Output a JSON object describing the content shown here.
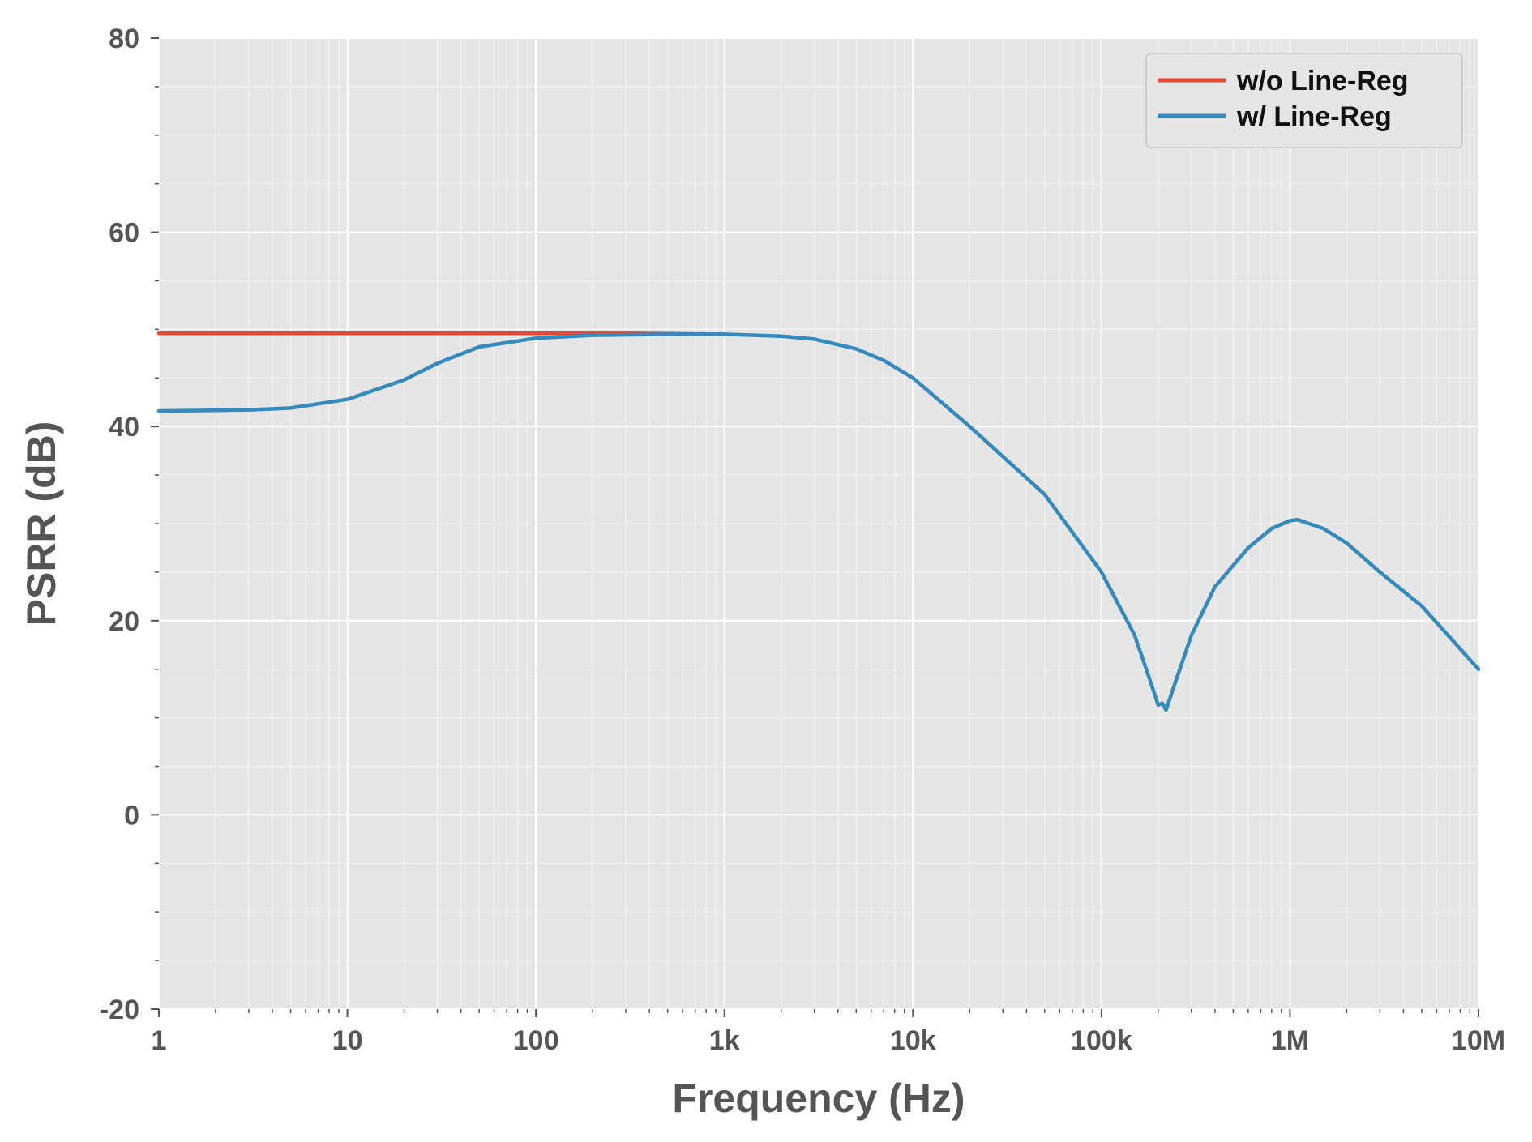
{
  "chart_data": {
    "type": "line",
    "title": "",
    "xlabel": "Frequency (Hz)",
    "ylabel": "PSRR (dB)",
    "xscale": "log",
    "xlim": [
      1,
      10000000
    ],
    "ylim": [
      -20,
      80
    ],
    "xticks": [
      {
        "value": 1,
        "label": "1"
      },
      {
        "value": 10,
        "label": "10"
      },
      {
        "value": 100,
        "label": "100"
      },
      {
        "value": 1000,
        "label": "1k"
      },
      {
        "value": 10000,
        "label": "10k"
      },
      {
        "value": 100000,
        "label": "100k"
      },
      {
        "value": 1000000,
        "label": "1M"
      },
      {
        "value": 10000000,
        "label": "10M"
      }
    ],
    "yticks": [
      {
        "value": -20,
        "label": "-20"
      },
      {
        "value": 0,
        "label": "0"
      },
      {
        "value": 20,
        "label": "20"
      },
      {
        "value": 40,
        "label": "40"
      },
      {
        "value": 60,
        "label": "60"
      },
      {
        "value": 80,
        "label": "80"
      }
    ],
    "grid": true,
    "legend_position": "top-right",
    "series": [
      {
        "name": "w/o Line-Reg",
        "color": "#E24A33",
        "x": [
          1,
          10,
          100,
          300,
          1000
        ],
        "y": [
          49.6,
          49.6,
          49.6,
          49.6,
          49.5
        ]
      },
      {
        "name": "w/ Line-Reg",
        "color": "#348ABD",
        "x": [
          1,
          3,
          5,
          10,
          20,
          30,
          50,
          100,
          200,
          500,
          1000,
          2000,
          3000,
          5000,
          7000,
          10000,
          20000,
          50000,
          100000,
          150000,
          180000,
          200000,
          210000,
          220000,
          250000,
          300000,
          400000,
          600000,
          800000,
          1000000,
          1100000,
          1500000,
          2000000,
          3000000,
          5000000,
          10000000
        ],
        "y": [
          41.6,
          41.7,
          41.9,
          42.8,
          44.8,
          46.5,
          48.2,
          49.1,
          49.4,
          49.5,
          49.5,
          49.3,
          49.0,
          48.0,
          46.8,
          45.0,
          40.0,
          33.0,
          25.0,
          18.5,
          14.0,
          11.3,
          11.5,
          10.8,
          14.0,
          18.5,
          23.5,
          27.5,
          29.5,
          30.3,
          30.4,
          29.5,
          28.0,
          25.0,
          21.5,
          15.0
        ]
      }
    ]
  }
}
